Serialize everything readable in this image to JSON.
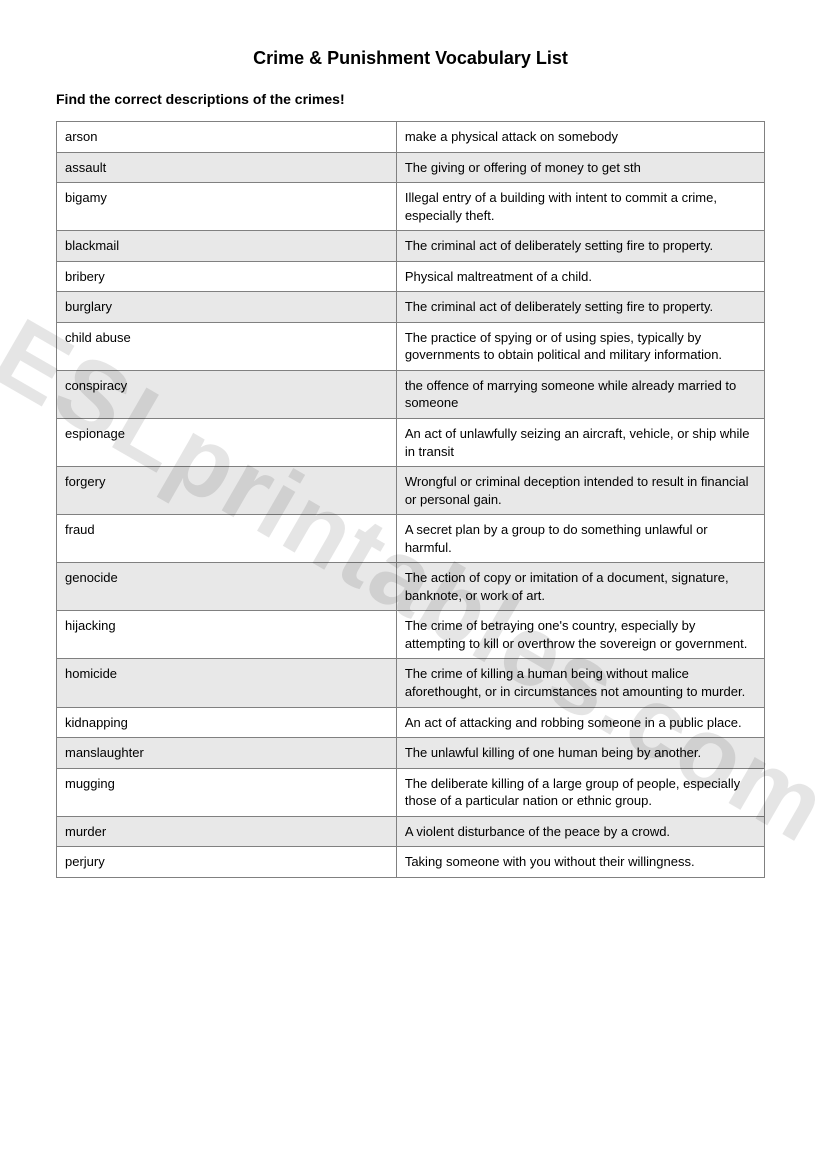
{
  "title": "Crime & Punishment Vocabulary List",
  "subtitle": "Find the correct descriptions of the crimes!",
  "watermark": "ESLprintables.com",
  "table": {
    "rows": [
      {
        "term": "arson",
        "definition": "make a physical attack on somebody",
        "shaded": false
      },
      {
        "term": "assault",
        "definition": "The giving or offering of money to get sth",
        "shaded": true
      },
      {
        "term": "bigamy",
        "definition": "Illegal entry of a building with intent to commit a crime, especially theft.",
        "shaded": false
      },
      {
        "term": "blackmail",
        "definition": "The criminal act of deliberately setting fire to property.",
        "shaded": true
      },
      {
        "term": "bribery",
        "definition": "Physical maltreatment of a child.",
        "shaded": false
      },
      {
        "term": "burglary",
        "definition": "The criminal act of deliberately setting fire to property.",
        "shaded": true
      },
      {
        "term": "child abuse",
        "definition": "The practice of spying or of using spies, typically by governments to obtain political and military information.",
        "shaded": false
      },
      {
        "term": "conspiracy",
        "definition": "the offence of marrying someone while already married to someone",
        "shaded": true
      },
      {
        "term": "espionage",
        "definition": "An act of unlawfully seizing an aircraft, vehicle, or ship while in transit",
        "shaded": false
      },
      {
        "term": "forgery",
        "definition": "Wrongful or criminal deception intended to result in financial or personal gain.",
        "shaded": true
      },
      {
        "term": "fraud",
        "definition": "A secret plan by a group to do something unlawful or harmful.",
        "shaded": false
      },
      {
        "term": "genocide",
        "definition": "The action of copy or imitation of a document, signature, banknote, or work of art.",
        "shaded": true
      },
      {
        "term": "hijacking",
        "definition": "The crime of betraying one's country, especially by attempting to kill or overthrow the sovereign or government.",
        "shaded": false
      },
      {
        "term": "homicide",
        "definition": "The crime of killing a human being without malice aforethought, or in circumstances not amounting to murder.",
        "shaded": true
      },
      {
        "term": "kidnapping",
        "definition": "An act of attacking and robbing someone in a public place.",
        "shaded": false
      },
      {
        "term": "manslaughter",
        "definition": "The unlawful killing of one human being by another.",
        "shaded": true
      },
      {
        "term": "mugging",
        "definition": "The deliberate killing of a large group of people, especially those of a particular nation or ethnic group.",
        "shaded": false
      },
      {
        "term": "murder",
        "definition": "A violent disturbance of the peace by a crowd.",
        "shaded": true
      },
      {
        "term": "perjury",
        "definition": "Taking someone with you without their willingness.",
        "shaded": false
      }
    ]
  }
}
